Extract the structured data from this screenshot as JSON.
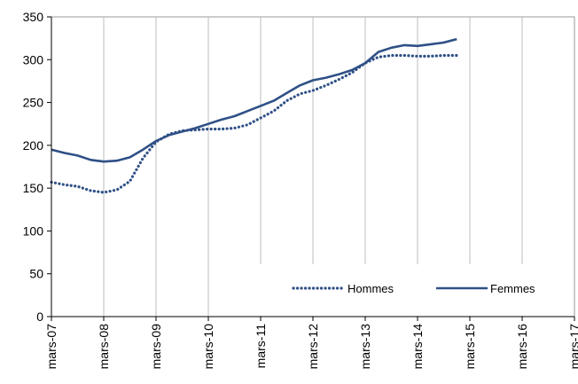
{
  "chart_data": {
    "type": "line",
    "title": "",
    "xlabel": "",
    "ylabel": "",
    "ylim": [
      0,
      350
    ],
    "yticks": [
      0,
      50,
      100,
      150,
      200,
      250,
      300,
      350
    ],
    "xticks": [
      "mars-07",
      "mars-08",
      "mars-09",
      "mars-10",
      "mars-11",
      "mars-12",
      "mars-13",
      "mars-14",
      "mars-15",
      "mars-16",
      "mars-17"
    ],
    "grid": "vertical",
    "legend_position": "bottom-right",
    "x_step": "quarter",
    "series": [
      {
        "name": "Hommes",
        "style": "dotted",
        "color": "#2f5086",
        "values": [
          157,
          154,
          152,
          147,
          145,
          148,
          158,
          185,
          204,
          213,
          217,
          218,
          219,
          219,
          220,
          224,
          232,
          240,
          252,
          260,
          264,
          270,
          277,
          285,
          296,
          303,
          305,
          305,
          304,
          304,
          305,
          305
        ]
      },
      {
        "name": "Femmes",
        "style": "solid",
        "color": "#2f5086",
        "values": [
          195,
          191,
          188,
          183,
          181,
          182,
          186,
          195,
          205,
          212,
          216,
          220,
          225,
          230,
          234,
          240,
          246,
          252,
          261,
          270,
          276,
          279,
          283,
          288,
          296,
          309,
          314,
          317,
          316,
          318,
          320,
          324
        ]
      }
    ]
  }
}
